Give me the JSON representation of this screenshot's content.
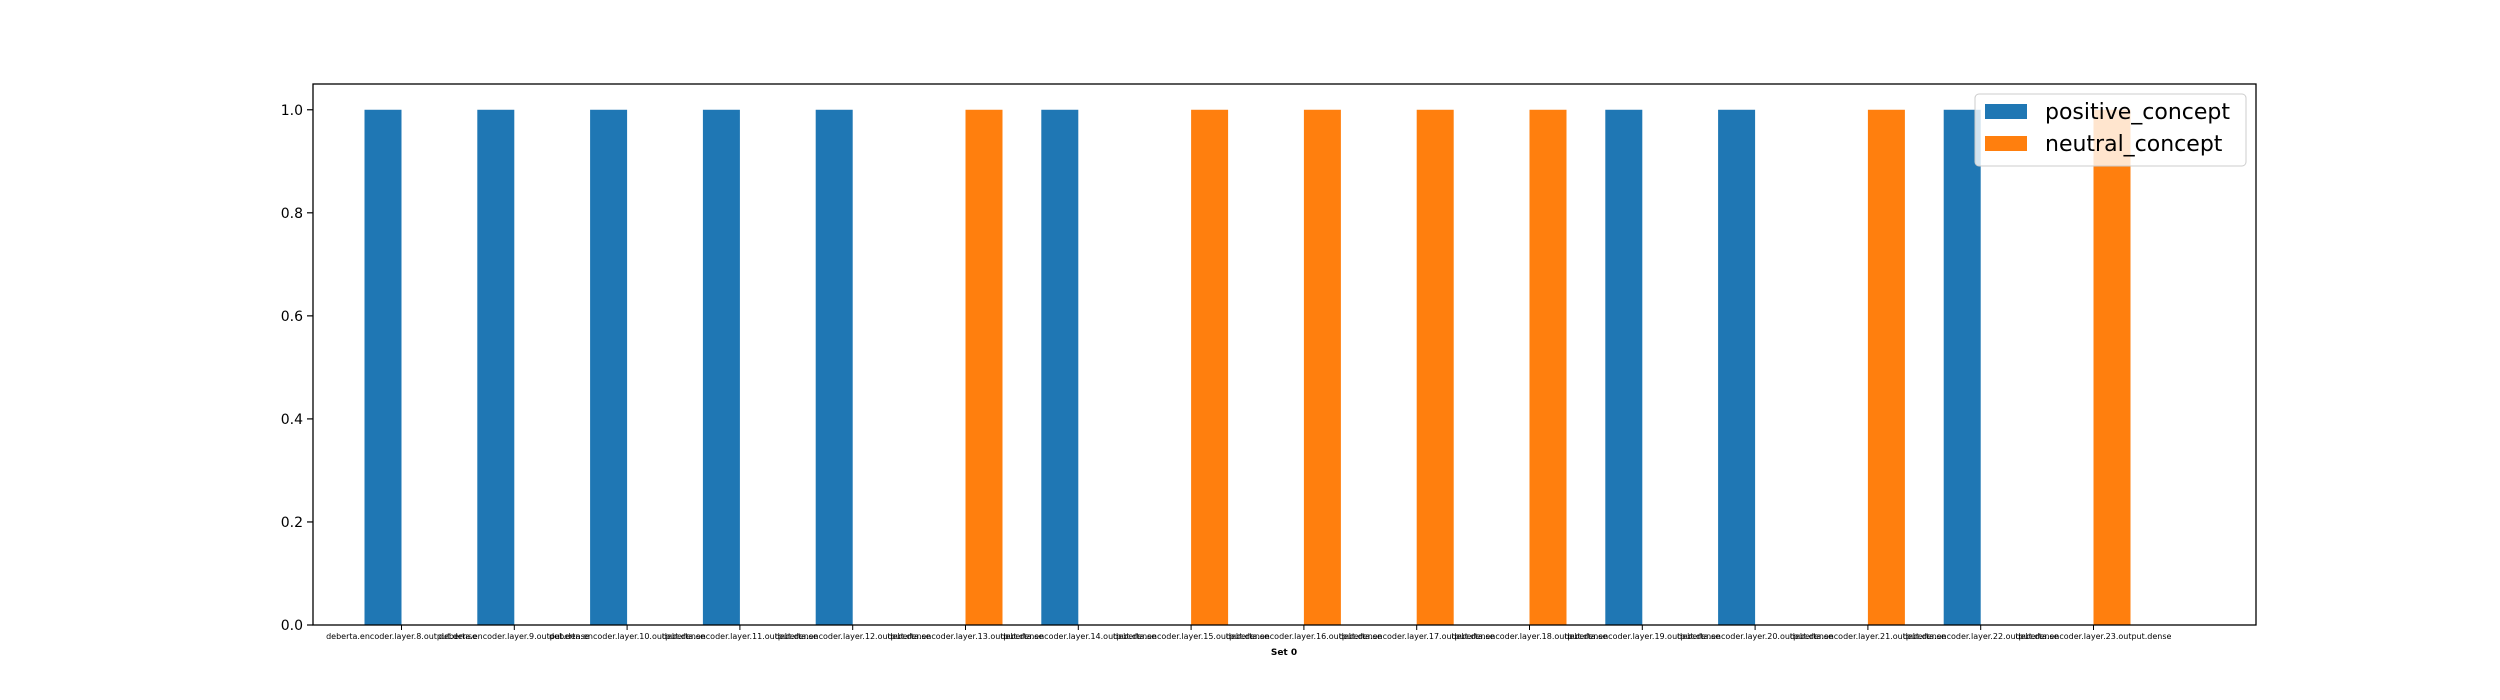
{
  "chart_data": {
    "type": "bar",
    "xlabel": "Set 0",
    "ylabel": "",
    "title": "",
    "ylim": [
      0,
      1.05
    ],
    "yticks": [
      0.0,
      0.2,
      0.4,
      0.6,
      0.8,
      1.0
    ],
    "ytick_labels": [
      "0.0",
      "0.2",
      "0.4",
      "0.6",
      "0.8",
      "1.0"
    ],
    "legend_position": "top-right",
    "grid": false,
    "categories": [
      "deberta.encoder.layer.8.output.dense",
      "deberta.encoder.layer.9.output.dense",
      "deberta.encoder.layer.10.output.dense",
      "deberta.encoder.layer.11.output.dense",
      "deberta.encoder.layer.12.output.dense",
      "deberta.encoder.layer.13.output.dense",
      "deberta.encoder.layer.14.output.dense",
      "deberta.encoder.layer.15.output.dense",
      "deberta.encoder.layer.16.output.dense",
      "deberta.encoder.layer.17.output.dense",
      "deberta.encoder.layer.18.output.dense",
      "deberta.encoder.layer.19.output.dense",
      "deberta.encoder.layer.20.output.dense",
      "deberta.encoder.layer.21.output.dense",
      "deberta.encoder.layer.22.output.dense",
      "deberta.encoder.layer.23.output.dense"
    ],
    "series": [
      {
        "name": "positive_concept",
        "color": "#1f77b4",
        "values": [
          1,
          1,
          1,
          1,
          1,
          0,
          1,
          0,
          0,
          0,
          0,
          1,
          1,
          0,
          1,
          0
        ]
      },
      {
        "name": "neutral_concept",
        "color": "#ff7f0e",
        "values": [
          0,
          0,
          0,
          0,
          0,
          1,
          0,
          1,
          1,
          1,
          1,
          0,
          0,
          1,
          0,
          1
        ]
      }
    ]
  }
}
